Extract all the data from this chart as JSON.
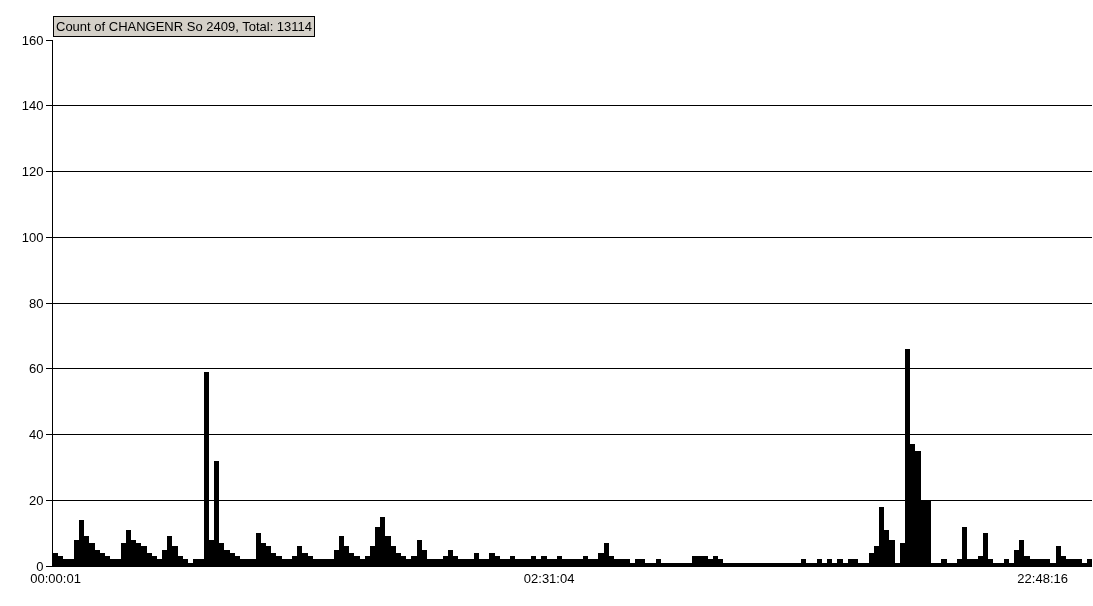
{
  "chart_data": {
    "type": "bar",
    "title": "Count of CHANGENR So 2409, Total: 13114",
    "categories": [
      "00:00:01",
      null,
      null,
      null,
      null,
      null,
      null,
      null,
      null,
      null,
      null,
      null,
      null,
      null,
      null,
      null,
      null,
      null,
      null,
      null,
      null,
      null,
      null,
      null,
      null,
      null,
      null,
      null,
      null,
      null,
      null,
      null,
      null,
      null,
      null,
      null,
      null,
      null,
      null,
      null,
      null,
      null,
      null,
      null,
      null,
      null,
      null,
      null,
      null,
      null,
      null,
      null,
      null,
      null,
      null,
      null,
      null,
      null,
      null,
      null,
      null,
      null,
      null,
      null,
      null,
      null,
      null,
      null,
      null,
      null,
      null,
      null,
      null,
      null,
      null,
      null,
      null,
      null,
      null,
      null,
      null,
      null,
      null,
      null,
      null,
      null,
      null,
      null,
      null,
      null,
      null,
      null,
      null,
      null,
      null,
      "02:31:04",
      null,
      null,
      null,
      null,
      null,
      null,
      null,
      null,
      null,
      null,
      null,
      null,
      null,
      null,
      null,
      null,
      null,
      null,
      null,
      null,
      null,
      null,
      null,
      null,
      null,
      null,
      null,
      null,
      null,
      null,
      null,
      null,
      null,
      null,
      null,
      null,
      null,
      null,
      null,
      null,
      null,
      null,
      null,
      null,
      null,
      null,
      null,
      null,
      null,
      null,
      null,
      null,
      null,
      null,
      null,
      null,
      null,
      null,
      null,
      null,
      null,
      null,
      null,
      null,
      null,
      null,
      null,
      null,
      null,
      null,
      null,
      null,
      null,
      null,
      null,
      null,
      null,
      null,
      null,
      null,
      null,
      null,
      null,
      null,
      null,
      null,
      null,
      null,
      null,
      null,
      null,
      null,
      null,
      null,
      "22:48:16",
      null,
      null,
      null,
      null,
      null,
      null,
      null,
      null,
      null
    ],
    "values": [
      4,
      3,
      2,
      2,
      8,
      14,
      9,
      7,
      5,
      4,
      3,
      2,
      2,
      7,
      11,
      8,
      7,
      6,
      4,
      3,
      2,
      5,
      9,
      6,
      3,
      2,
      1,
      2,
      2,
      59,
      8,
      32,
      7,
      5,
      4,
      3,
      2,
      2,
      2,
      10,
      7,
      6,
      4,
      3,
      2,
      2,
      3,
      6,
      4,
      3,
      2,
      2,
      2,
      2,
      5,
      9,
      6,
      4,
      3,
      2,
      3,
      6,
      12,
      15,
      9,
      6,
      4,
      3,
      2,
      3,
      8,
      5,
      2,
      2,
      2,
      3,
      5,
      3,
      2,
      2,
      2,
      4,
      2,
      2,
      4,
      3,
      2,
      2,
      3,
      2,
      2,
      2,
      3,
      2,
      3,
      2,
      2,
      3,
      2,
      2,
      2,
      2,
      3,
      2,
      2,
      4,
      7,
      3,
      2,
      2,
      2,
      1,
      2,
      2,
      1,
      1,
      2,
      1,
      1,
      1,
      1,
      1,
      1,
      3,
      3,
      3,
      2,
      3,
      2,
      1,
      1,
      1,
      1,
      1,
      1,
      1,
      1,
      1,
      1,
      1,
      1,
      1,
      1,
      1,
      2,
      1,
      1,
      2,
      1,
      2,
      1,
      2,
      1,
      2,
      2,
      1,
      1,
      4,
      6,
      18,
      11,
      8,
      1,
      7,
      66,
      37,
      35,
      20,
      20,
      1,
      1,
      2,
      1,
      1,
      2,
      12,
      2,
      2,
      3,
      10,
      2,
      1,
      1,
      2,
      1,
      5,
      8,
      3,
      2,
      2,
      2,
      2,
      1,
      6,
      3,
      2,
      2,
      2,
      1,
      2
    ],
    "color": "#000000",
    "ylim": [
      0,
      160
    ],
    "yticks": [
      0,
      20,
      40,
      60,
      80,
      100,
      120,
      140,
      160
    ],
    "grid": "y"
  }
}
